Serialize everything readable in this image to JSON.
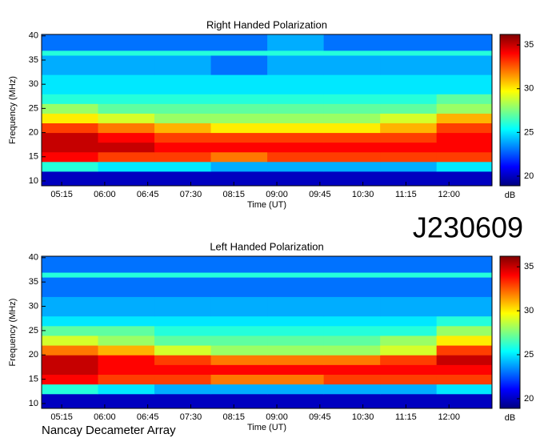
{
  "chart_data": [
    {
      "type": "heatmap",
      "title": "Right Handed Polarization",
      "x_label": "Time (UT)",
      "y_label": "Frequency (MHz)",
      "colorbar_label": "dB",
      "xlim": [
        294,
        765
      ],
      "ylim": [
        9,
        40.3
      ],
      "clim": [
        18.9,
        36.2
      ],
      "xticks": [
        {
          "value": 315,
          "label": "05:15"
        },
        {
          "value": 360,
          "label": "06:00"
        },
        {
          "value": 405,
          "label": "06:45"
        },
        {
          "value": 450,
          "label": "07:30"
        },
        {
          "value": 495,
          "label": "08:15"
        },
        {
          "value": 540,
          "label": "09:00"
        },
        {
          "value": 585,
          "label": "09:45"
        },
        {
          "value": 630,
          "label": "10:30"
        },
        {
          "value": 675,
          "label": "11:15"
        },
        {
          "value": 720,
          "label": "12:00"
        }
      ],
      "yticks": [
        10,
        15,
        20,
        25,
        30,
        35,
        40
      ],
      "cticks": [
        20,
        25,
        30,
        35
      ],
      "x_edges": [
        294,
        353,
        412,
        471,
        530,
        589,
        648,
        707,
        765
      ],
      "y_edges": [
        9,
        12,
        14,
        16,
        18,
        20,
        22,
        24,
        26,
        28,
        32,
        36,
        37,
        40.3
      ],
      "z": [
        [
          20,
          20,
          20,
          20,
          20,
          20,
          20,
          20
        ],
        [
          26,
          25,
          25,
          24,
          24,
          24,
          24,
          25
        ],
        [
          34,
          33,
          33,
          32,
          33,
          33,
          33,
          33
        ],
        [
          35,
          35,
          34,
          34,
          34,
          34,
          34,
          34
        ],
        [
          35,
          34,
          33,
          33,
          33,
          33,
          33,
          34
        ],
        [
          33,
          32,
          31,
          30,
          30,
          30,
          31,
          33
        ],
        [
          30,
          29,
          28,
          28,
          28,
          28,
          29,
          31
        ],
        [
          28,
          27,
          27,
          27,
          27,
          27,
          27,
          28
        ],
        [
          26,
          26,
          26,
          26,
          26,
          26,
          26,
          27
        ],
        [
          25,
          25,
          25,
          25,
          25,
          25,
          25,
          25
        ],
        [
          24,
          24,
          24,
          23,
          24,
          24,
          24,
          24
        ],
        [
          26,
          26,
          26,
          26,
          26,
          26,
          26,
          26
        ],
        [
          23,
          23,
          23,
          23,
          24,
          23,
          23,
          23
        ]
      ]
    },
    {
      "type": "heatmap",
      "title": "Left Handed Polarization",
      "x_label": "Time (UT)",
      "y_label": "Frequency (MHz)",
      "colorbar_label": "dB",
      "xlim": [
        294,
        765
      ],
      "ylim": [
        9,
        40.3
      ],
      "clim": [
        18.9,
        36.2
      ],
      "xticks": [
        {
          "value": 315,
          "label": "05:15"
        },
        {
          "value": 360,
          "label": "06:00"
        },
        {
          "value": 405,
          "label": "06:45"
        },
        {
          "value": 450,
          "label": "07:30"
        },
        {
          "value": 495,
          "label": "08:15"
        },
        {
          "value": 540,
          "label": "09:00"
        },
        {
          "value": 585,
          "label": "09:45"
        },
        {
          "value": 630,
          "label": "10:30"
        },
        {
          "value": 675,
          "label": "11:15"
        },
        {
          "value": 720,
          "label": "12:00"
        }
      ],
      "yticks": [
        10,
        15,
        20,
        25,
        30,
        35,
        40
      ],
      "cticks": [
        20,
        25,
        30,
        35
      ],
      "x_edges": [
        294,
        353,
        412,
        471,
        530,
        589,
        648,
        707,
        765
      ],
      "y_edges": [
        9,
        12,
        14,
        16,
        18,
        20,
        22,
        24,
        26,
        28,
        32,
        36,
        37,
        40.3
      ],
      "z": [
        [
          20,
          20,
          20,
          20,
          20,
          20,
          20,
          20
        ],
        [
          26,
          25,
          24,
          24,
          24,
          24,
          24,
          25
        ],
        [
          34,
          33,
          33,
          32,
          32,
          33,
          33,
          33
        ],
        [
          35,
          34,
          34,
          34,
          34,
          34,
          34,
          34
        ],
        [
          35,
          34,
          33,
          32,
          32,
          32,
          33,
          35
        ],
        [
          32,
          31,
          29,
          28,
          28,
          28,
          29,
          33
        ],
        [
          29,
          28,
          27,
          27,
          27,
          27,
          28,
          30
        ],
        [
          27,
          27,
          26,
          26,
          26,
          26,
          26,
          28
        ],
        [
          25,
          25,
          25,
          25,
          25,
          25,
          25,
          26
        ],
        [
          24,
          24,
          24,
          24,
          24,
          24,
          24,
          24
        ],
        [
          23,
          23,
          23,
          23,
          23,
          23,
          23,
          23
        ],
        [
          26,
          26,
          26,
          26,
          26,
          26,
          26,
          26
        ],
        [
          23,
          23,
          23,
          23,
          23,
          23,
          23,
          23
        ]
      ]
    }
  ],
  "station_code": "J230609",
  "footer": "Nancay Decameter Array"
}
